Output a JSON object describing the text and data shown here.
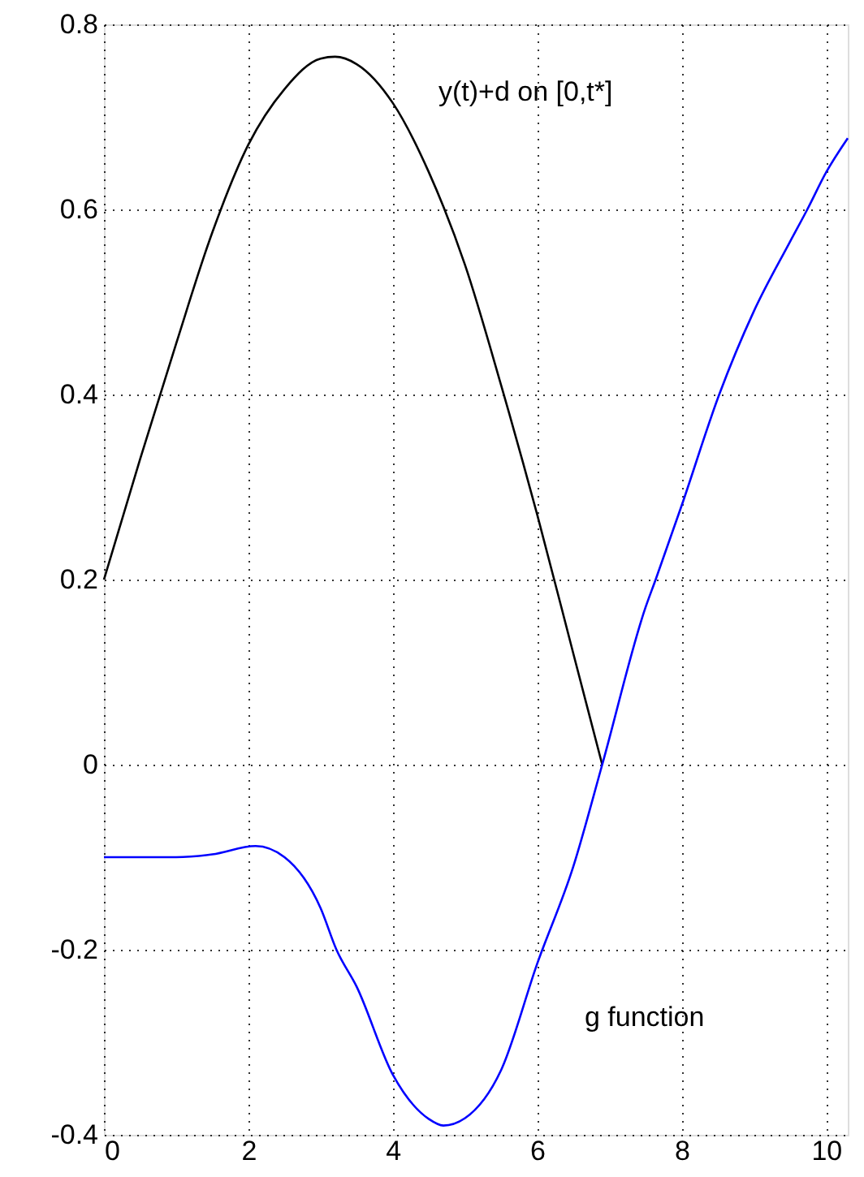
{
  "chart_data": {
    "type": "line",
    "xlim": [
      0,
      10.3
    ],
    "xticks": [
      0,
      2,
      4,
      6,
      8,
      10
    ],
    "ylim": [
      -0.4,
      0.8
    ],
    "yticks": [
      -0.4,
      -0.2,
      0,
      0.2,
      0.4,
      0.6,
      0.8
    ],
    "grid": true,
    "legend": false,
    "marker": "none",
    "line_style": "solid",
    "series": [
      {
        "name": "y(t)+d  on [0,t*]",
        "color": "#000000",
        "x": [
          0,
          0.5,
          1,
          1.5,
          2,
          2.5,
          3,
          3.2,
          3.5,
          4,
          4.5,
          5,
          5.5,
          6,
          6.5,
          6.9
        ],
        "values": [
          0.2,
          0.33,
          0.455,
          0.575,
          0.67,
          0.73,
          0.763,
          0.765,
          0.757,
          0.715,
          0.64,
          0.54,
          0.41,
          0.27,
          0.12,
          0.0
        ]
      },
      {
        "name": "g function",
        "color": "#0000ff",
        "x": [
          0,
          0.5,
          1,
          1.5,
          2.1,
          2.5,
          3,
          3.22,
          3.5,
          4,
          4.5,
          4.7,
          5,
          5.5,
          6,
          6.5,
          6.9,
          7.5,
          7.64,
          8,
          8.52,
          9,
          9.5,
          9.74,
          10,
          10.3
        ],
        "values": [
          -0.1,
          -0.1,
          -0.1,
          -0.097,
          -0.088,
          -0.1,
          -0.155,
          -0.2,
          -0.24,
          -0.335,
          -0.383,
          -0.39,
          -0.382,
          -0.33,
          -0.215,
          -0.11,
          0.0,
          0.17,
          0.2,
          0.28,
          0.4,
          0.49,
          0.565,
          0.6,
          0.64,
          0.677
        ]
      }
    ]
  }
}
